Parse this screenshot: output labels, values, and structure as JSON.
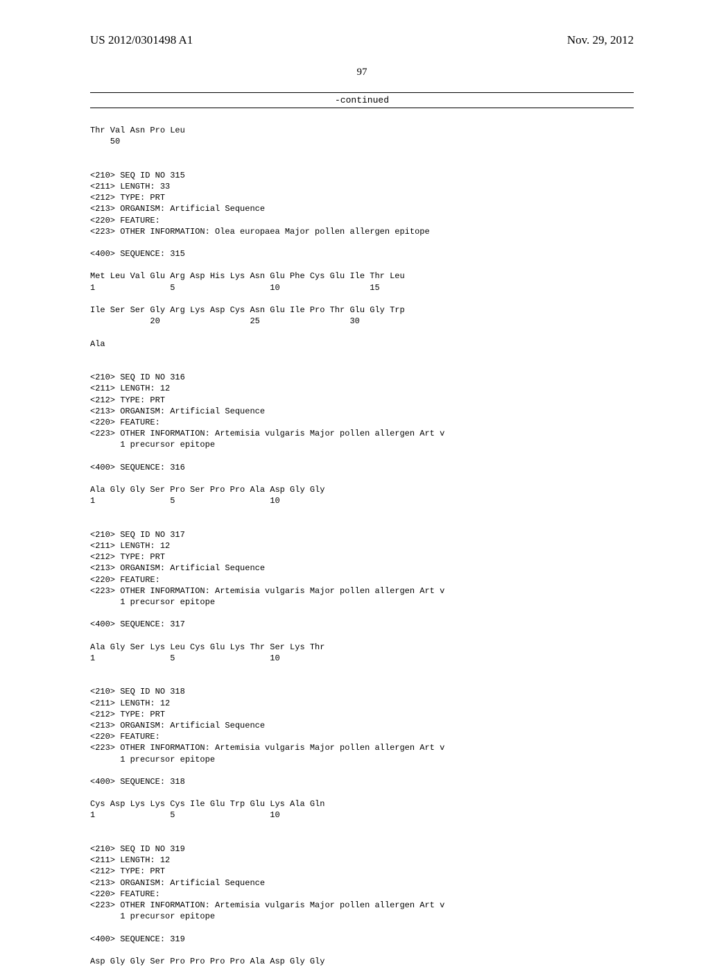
{
  "header": {
    "left": "US 2012/0301498 A1",
    "right": "Nov. 29, 2012"
  },
  "pagenum": "97",
  "continued": "-continued",
  "seq": {
    "trailing_block": "Thr Val Asn Pro Leu\n    50",
    "entries": [
      {
        "id_line": "<210> SEQ ID NO 315",
        "length_line": "<211> LENGTH: 33",
        "type_line": "<212> TYPE: PRT",
        "organism_line": "<213> ORGANISM: Artificial Sequence",
        "feature_line": "<220> FEATURE:",
        "other_info_line": "<223> OTHER INFORMATION: Olea europaea Major pollen allergen epitope",
        "seq_header": "<400> SEQUENCE: 315",
        "sequence": "Met Leu Val Glu Arg Asp His Lys Asn Glu Phe Cys Glu Ile Thr Leu\n1               5                   10                  15\n\nIle Ser Ser Gly Arg Lys Asp Cys Asn Glu Ile Pro Thr Glu Gly Trp\n            20                  25                  30\n\nAla"
      },
      {
        "id_line": "<210> SEQ ID NO 316",
        "length_line": "<211> LENGTH: 12",
        "type_line": "<212> TYPE: PRT",
        "organism_line": "<213> ORGANISM: Artificial Sequence",
        "feature_line": "<220> FEATURE:",
        "other_info_line": "<223> OTHER INFORMATION: Artemisia vulgaris Major pollen allergen Art v\n      1 precursor epitope",
        "seq_header": "<400> SEQUENCE: 316",
        "sequence": "Ala Gly Gly Ser Pro Ser Pro Pro Ala Asp Gly Gly\n1               5                   10"
      },
      {
        "id_line": "<210> SEQ ID NO 317",
        "length_line": "<211> LENGTH: 12",
        "type_line": "<212> TYPE: PRT",
        "organism_line": "<213> ORGANISM: Artificial Sequence",
        "feature_line": "<220> FEATURE:",
        "other_info_line": "<223> OTHER INFORMATION: Artemisia vulgaris Major pollen allergen Art v\n      1 precursor epitope",
        "seq_header": "<400> SEQUENCE: 317",
        "sequence": "Ala Gly Ser Lys Leu Cys Glu Lys Thr Ser Lys Thr\n1               5                   10"
      },
      {
        "id_line": "<210> SEQ ID NO 318",
        "length_line": "<211> LENGTH: 12",
        "type_line": "<212> TYPE: PRT",
        "organism_line": "<213> ORGANISM: Artificial Sequence",
        "feature_line": "<220> FEATURE:",
        "other_info_line": "<223> OTHER INFORMATION: Artemisia vulgaris Major pollen allergen Art v\n      1 precursor epitope",
        "seq_header": "<400> SEQUENCE: 318",
        "sequence": "Cys Asp Lys Lys Cys Ile Glu Trp Glu Lys Ala Gln\n1               5                   10"
      },
      {
        "id_line": "<210> SEQ ID NO 319",
        "length_line": "<211> LENGTH: 12",
        "type_line": "<212> TYPE: PRT",
        "organism_line": "<213> ORGANISM: Artificial Sequence",
        "feature_line": "<220> FEATURE:",
        "other_info_line": "<223> OTHER INFORMATION: Artemisia vulgaris Major pollen allergen Art v\n      1 precursor epitope",
        "seq_header": "<400> SEQUENCE: 319",
        "sequence": "Asp Gly Gly Ser Pro Pro Pro Pro Ala Asp Gly Gly"
      }
    ]
  }
}
